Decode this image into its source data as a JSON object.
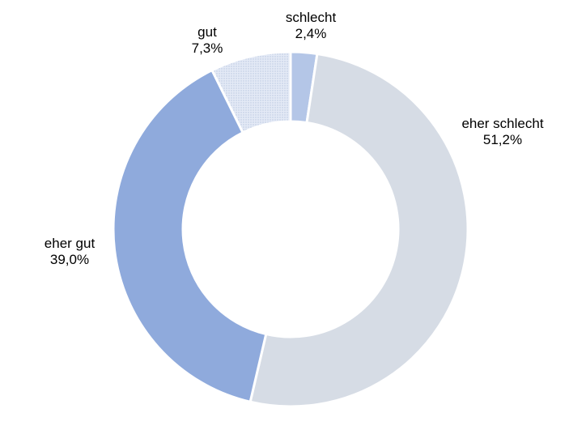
{
  "chart_data": {
    "type": "pie",
    "variant": "donut",
    "title": "",
    "start_angle_deg": 0,
    "direction": "clockwise",
    "slices": [
      {
        "label": "schlecht",
        "value": 2.4,
        "value_label": "2,4%",
        "color": "#b4c6e7"
      },
      {
        "label": "eher schlecht",
        "value": 51.2,
        "value_label": "51,2%",
        "color": "#d6dce5"
      },
      {
        "label": "eher gut",
        "value": 39.0,
        "value_label": "39,0%",
        "color": "#8faadc"
      },
      {
        "label": "gut",
        "value": 7.3,
        "value_label": "7,3%",
        "color": "#dae3f3",
        "pattern": "dotted"
      }
    ],
    "legend": "none"
  }
}
